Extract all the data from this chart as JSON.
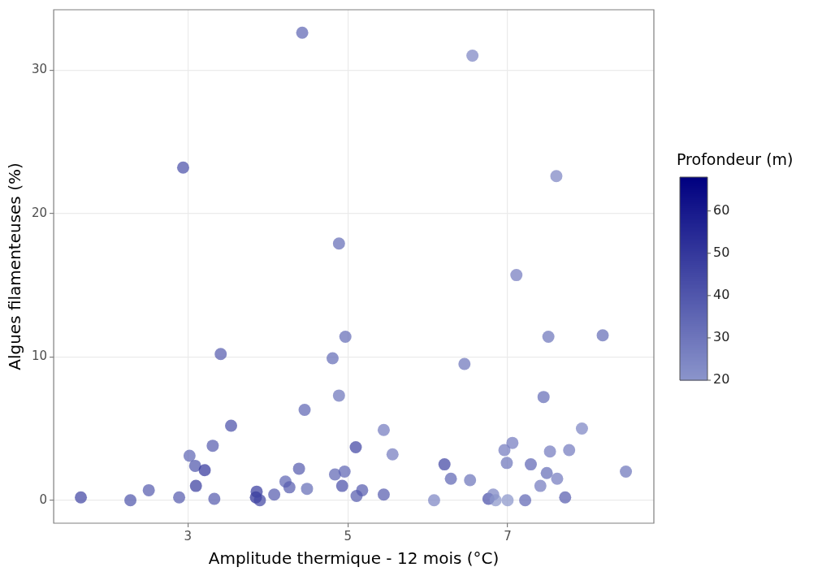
{
  "chart_data": {
    "type": "scatter",
    "xlabel": "Amplitude thermique - 12 mois (°C)",
    "ylabel": "Algues filamenteuses (%)",
    "clabel": "Profondeur (m)",
    "xlim": [
      1.32,
      8.83
    ],
    "ylim": [
      -1.6,
      34.2
    ],
    "xticks": [
      3,
      5,
      7
    ],
    "yticks": [
      0,
      10,
      20,
      30
    ],
    "clim": [
      20,
      68
    ],
    "cticks": [
      20,
      30,
      40,
      50,
      60
    ],
    "grid": true,
    "legend": false,
    "marker": "circle",
    "series": [
      {
        "x": [
          1.66,
          2.28,
          2.51,
          2.89,
          2.94,
          3.02,
          3.09,
          3.1,
          3.21,
          3.33,
          3.31,
          3.41,
          3.54,
          3.85,
          3.86,
          3.9,
          4.08,
          4.22,
          4.27,
          4.39,
          4.43,
          4.46,
          4.49,
          4.81,
          4.84,
          4.89,
          4.89,
          4.93,
          4.96,
          4.97,
          5.1,
          5.11,
          5.18,
          5.45,
          5.45,
          5.56,
          6.08,
          6.21,
          6.29,
          6.46,
          6.53,
          6.56,
          6.76,
          6.82,
          6.85,
          6.96,
          6.99,
          7.0,
          7.06,
          7.11,
          7.22,
          7.29,
          7.41,
          7.45,
          7.49,
          7.51,
          7.53,
          7.61,
          7.62,
          7.72,
          7.77,
          7.93,
          8.19,
          8.48
        ],
        "values": [
          0.2,
          0,
          0.7,
          0.2,
          23.2,
          3.1,
          2.4,
          1.0,
          2.1,
          0.1,
          3.8,
          10.2,
          5.2,
          0.2,
          0.6,
          0,
          0.4,
          1.3,
          0.9,
          2.2,
          32.6,
          6.3,
          0.8,
          9.9,
          1.8,
          17.9,
          7.3,
          1.0,
          2.0,
          11.4,
          3.7,
          0.3,
          0.7,
          4.9,
          0.4,
          3.2,
          0,
          2.5,
          1.5,
          9.5,
          1.4,
          31.0,
          0.1,
          0.4,
          0,
          3.5,
          2.6,
          0,
          4.0,
          15.7,
          0,
          2.5,
          1.0,
          7.2,
          1.9,
          11.4,
          3.4,
          22.6,
          1.5,
          0.2,
          3.5,
          5.0,
          11.5,
          2.0
        ],
        "cvalues": [
          45,
          40,
          38,
          38,
          42,
          35,
          40,
          48,
          50,
          38,
          38,
          38,
          42,
          52,
          48,
          45,
          38,
          35,
          38,
          38,
          35,
          35,
          33,
          33,
          35,
          33,
          30,
          42,
          35,
          33,
          45,
          38,
          38,
          28,
          38,
          28,
          25,
          45,
          35,
          30,
          30,
          25,
          42,
          25,
          20,
          28,
          30,
          20,
          28,
          28,
          35,
          35,
          28,
          33,
          33,
          30,
          28,
          25,
          28,
          38,
          28,
          25,
          33,
          30
        ]
      }
    ]
  }
}
